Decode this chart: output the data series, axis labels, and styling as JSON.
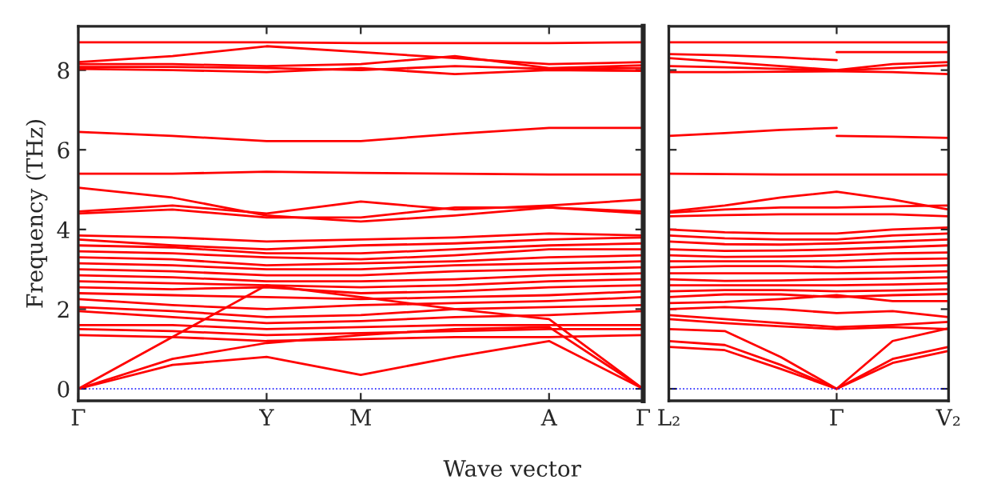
{
  "chart_data": [
    {
      "type": "line",
      "ylabel": "Frequency (THz)",
      "xlabel": "Wave vector",
      "categories": [
        "Γ",
        null,
        "Y",
        "M",
        null,
        "A",
        "Γ"
      ],
      "ylim": [
        -0.3,
        9.1
      ],
      "yticks": [
        0,
        2,
        4,
        6,
        8
      ],
      "grid": false,
      "line_style": "solid",
      "ref_lines": [
        {
          "axis": "y",
          "value": 0,
          "color": "#0000ff",
          "line_style": "dotted"
        }
      ],
      "series": [
        {
          "color": "#ff0000",
          "values": [
            8.7,
            8.7,
            8.7,
            8.68,
            8.68,
            8.68,
            8.7
          ]
        },
        {
          "color": "#ff0000",
          "values": [
            8.2,
            8.35,
            8.6,
            8.45,
            8.3,
            8.15,
            8.2
          ]
        },
        {
          "color": "#ff0000",
          "values": [
            8.15,
            8.15,
            8.1,
            8.15,
            8.35,
            8.05,
            8.12
          ]
        },
        {
          "color": "#ff0000",
          "values": [
            8.03,
            8.0,
            7.95,
            8.05,
            7.9,
            8.0,
            7.98
          ]
        },
        {
          "color": "#ff0000",
          "values": [
            8.08,
            8.08,
            8.05,
            8.0,
            8.1,
            8.03,
            8.05
          ]
        },
        {
          "color": "#ff0000",
          "values": [
            6.45,
            6.35,
            6.22,
            6.22,
            6.4,
            6.55,
            6.55
          ]
        },
        {
          "color": "#ff0000",
          "values": [
            5.4,
            5.4,
            5.45,
            5.42,
            5.4,
            5.38,
            5.38
          ]
        },
        {
          "color": "#ff0000",
          "values": [
            5.05,
            4.8,
            4.35,
            4.2,
            4.35,
            4.55,
            4.4
          ]
        },
        {
          "color": "#ff0000",
          "values": [
            4.45,
            4.6,
            4.4,
            4.7,
            4.5,
            4.6,
            4.75
          ]
        },
        {
          "color": "#ff0000",
          "values": [
            4.4,
            4.5,
            4.3,
            4.3,
            4.55,
            4.55,
            4.45
          ]
        },
        {
          "color": "#ff0000",
          "values": [
            3.85,
            3.8,
            3.7,
            3.75,
            3.8,
            3.9,
            3.85
          ]
        },
        {
          "color": "#ff0000",
          "values": [
            3.75,
            3.6,
            3.5,
            3.6,
            3.65,
            3.75,
            3.8
          ]
        },
        {
          "color": "#ff0000",
          "values": [
            3.6,
            3.55,
            3.4,
            3.4,
            3.5,
            3.6,
            3.65
          ]
        },
        {
          "color": "#ff0000",
          "values": [
            3.45,
            3.4,
            3.3,
            3.25,
            3.35,
            3.5,
            3.5
          ]
        },
        {
          "color": "#ff0000",
          "values": [
            3.3,
            3.25,
            3.1,
            3.15,
            3.2,
            3.3,
            3.35
          ]
        },
        {
          "color": "#ff0000",
          "values": [
            3.15,
            3.1,
            3.0,
            3.0,
            3.1,
            3.15,
            3.2
          ]
        },
        {
          "color": "#ff0000",
          "values": [
            3.0,
            2.95,
            2.85,
            2.85,
            2.95,
            3.0,
            3.05
          ]
        },
        {
          "color": "#ff0000",
          "values": [
            2.85,
            2.8,
            2.7,
            2.7,
            2.75,
            2.85,
            2.9
          ]
        },
        {
          "color": "#ff0000",
          "values": [
            2.7,
            2.65,
            2.6,
            2.55,
            2.6,
            2.7,
            2.75
          ]
        },
        {
          "color": "#ff0000",
          "values": [
            2.55,
            2.5,
            2.55,
            2.4,
            2.45,
            2.55,
            2.6
          ]
        },
        {
          "color": "#ff0000",
          "values": [
            2.4,
            2.35,
            2.3,
            2.25,
            2.3,
            2.35,
            2.45
          ]
        },
        {
          "color": "#ff0000",
          "values": [
            2.25,
            2.1,
            2.0,
            2.1,
            2.15,
            2.2,
            2.3
          ]
        },
        {
          "color": "#ff0000",
          "values": [
            2.05,
            1.95,
            1.8,
            1.85,
            2.0,
            2.05,
            2.1
          ]
        },
        {
          "color": "#ff0000",
          "values": [
            1.95,
            1.8,
            1.65,
            1.7,
            1.8,
            1.85,
            1.95
          ]
        },
        {
          "color": "#ff0000",
          "values": [
            1.6,
            1.6,
            1.5,
            1.55,
            1.6,
            1.6,
            1.6
          ]
        },
        {
          "color": "#ff0000",
          "values": [
            1.5,
            1.45,
            1.35,
            1.4,
            1.45,
            1.5,
            1.5
          ]
        },
        {
          "color": "#ff0000",
          "values": [
            1.35,
            1.3,
            1.2,
            1.25,
            1.3,
            1.3,
            1.35
          ]
        },
        {
          "color": "#ff0000",
          "values": [
            0,
            1.3,
            2.6,
            2.3,
            2.0,
            1.75,
            0
          ]
        },
        {
          "color": "#ff0000",
          "values": [
            0,
            0.75,
            1.15,
            1.35,
            1.5,
            1.55,
            0
          ]
        },
        {
          "color": "#ff0000",
          "values": [
            0,
            0.6,
            0.8,
            0.35,
            0.8,
            1.2,
            0
          ]
        }
      ]
    },
    {
      "type": "line",
      "categories": [
        "L₂",
        null,
        null,
        "Γ",
        null,
        "V₂"
      ],
      "ylim": [
        -0.3,
        9.1
      ],
      "yticks": [
        0,
        2,
        4,
        6,
        8
      ],
      "tick_labels": "x",
      "grid": false,
      "line_style": "solid",
      "ref_lines": [
        {
          "axis": "y",
          "value": 0,
          "color": "#0000ff",
          "line_style": "dotted"
        }
      ],
      "series": [
        {
          "color": "#ff0000",
          "values": [
            8.7,
            8.7,
            8.7,
            8.7,
            8.7,
            8.7
          ]
        },
        {
          "color": "#ff0000",
          "values": [
            8.4,
            8.37,
            8.32,
            8.25,
            null,
            null
          ]
        },
        {
          "color": "#ff0000",
          "values": [
            null,
            null,
            null,
            8.45,
            8.45,
            8.45
          ]
        },
        {
          "color": "#ff0000",
          "values": [
            8.3,
            8.2,
            8.1,
            8.0,
            8.15,
            8.2
          ]
        },
        {
          "color": "#ff0000",
          "values": [
            8.1,
            8.07,
            8.03,
            7.99,
            8.05,
            8.12
          ]
        },
        {
          "color": "#ff0000",
          "values": [
            7.95,
            7.95,
            7.96,
            7.97,
            7.95,
            7.9
          ]
        },
        {
          "color": "#ff0000",
          "values": [
            6.35,
            6.42,
            6.5,
            6.55,
            null,
            null
          ]
        },
        {
          "color": "#ff0000",
          "values": [
            null,
            null,
            null,
            6.35,
            6.33,
            6.3
          ]
        },
        {
          "color": "#ff0000",
          "values": [
            5.4,
            5.39,
            5.38,
            5.38,
            5.38,
            5.38
          ]
        },
        {
          "color": "#ff0000",
          "values": [
            4.45,
            4.6,
            4.8,
            4.95,
            4.75,
            4.5
          ]
        },
        {
          "color": "#ff0000",
          "values": [
            4.42,
            4.5,
            4.55,
            4.55,
            4.58,
            4.6
          ]
        },
        {
          "color": "#ff0000",
          "values": [
            4.33,
            4.36,
            4.38,
            4.38,
            4.38,
            4.33
          ]
        },
        {
          "color": "#ff0000",
          "values": [
            4.0,
            3.93,
            3.9,
            3.9,
            4.0,
            4.05
          ]
        },
        {
          "color": "#ff0000",
          "values": [
            3.85,
            3.78,
            3.75,
            3.75,
            3.85,
            3.9
          ]
        },
        {
          "color": "#ff0000",
          "values": [
            3.7,
            3.63,
            3.62,
            3.65,
            3.7,
            3.75
          ]
        },
        {
          "color": "#ff0000",
          "values": [
            3.5,
            3.46,
            3.47,
            3.5,
            3.55,
            3.6
          ]
        },
        {
          "color": "#ff0000",
          "values": [
            3.35,
            3.31,
            3.32,
            3.35,
            3.4,
            3.42
          ]
        },
        {
          "color": "#ff0000",
          "values": [
            3.2,
            3.2,
            3.2,
            3.2,
            3.25,
            3.27
          ]
        },
        {
          "color": "#ff0000",
          "values": [
            3.05,
            3.08,
            3.08,
            3.05,
            3.07,
            3.1
          ]
        },
        {
          "color": "#ff0000",
          "values": [
            2.9,
            2.9,
            2.9,
            2.9,
            2.92,
            2.95
          ]
        },
        {
          "color": "#ff0000",
          "values": [
            2.75,
            2.71,
            2.72,
            2.75,
            2.77,
            2.8
          ]
        },
        {
          "color": "#ff0000",
          "values": [
            2.6,
            2.6,
            2.6,
            2.6,
            2.62,
            2.65
          ]
        },
        {
          "color": "#ff0000",
          "values": [
            2.45,
            2.48,
            2.48,
            2.45,
            2.47,
            2.5
          ]
        },
        {
          "color": "#ff0000",
          "values": [
            2.3,
            2.37,
            2.37,
            2.3,
            2.35,
            2.38
          ]
        },
        {
          "color": "#ff0000",
          "values": [
            2.15,
            2.18,
            2.25,
            2.35,
            2.2,
            2.2
          ]
        },
        {
          "color": "#ff0000",
          "values": [
            2.0,
            2.05,
            2.0,
            1.9,
            1.95,
            1.8
          ]
        },
        {
          "color": "#ff0000",
          "values": [
            1.85,
            1.75,
            1.65,
            1.55,
            1.6,
            1.68
          ]
        },
        {
          "color": "#ff0000",
          "values": [
            1.75,
            1.65,
            1.57,
            1.5,
            1.55,
            1.5
          ]
        },
        {
          "color": "#ff0000",
          "values": [
            1.2,
            1.1,
            0.6,
            0,
            0.75,
            1.05
          ]
        },
        {
          "color": "#ff0000",
          "values": [
            1.05,
            0.97,
            0.5,
            0,
            0.65,
            0.95
          ]
        },
        {
          "color": "#ff0000",
          "values": [
            1.5,
            1.45,
            0.8,
            0,
            1.2,
            1.52
          ]
        }
      ]
    }
  ]
}
